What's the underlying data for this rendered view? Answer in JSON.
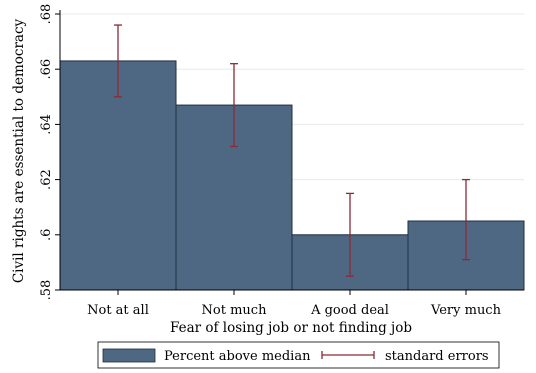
{
  "chart_data": {
    "type": "bar",
    "categories": [
      "Not at all",
      "Not much",
      "A good deal",
      "Very much"
    ],
    "series": [
      {
        "name": "Percent above median",
        "values": [
          0.663,
          0.647,
          0.6,
          0.605
        ],
        "error_low": [
          0.65,
          0.632,
          0.585,
          0.591
        ],
        "error_high": [
          0.676,
          0.662,
          0.615,
          0.62
        ]
      }
    ],
    "error_series_name": "standard errors",
    "xlabel": "Fear of losing job or not finding job",
    "ylabel": "Civil rights are essential to democracy",
    "ylim": [
      0.58,
      0.68
    ],
    "yticks": [
      0.58,
      0.6,
      0.62,
      0.64,
      0.66,
      0.68
    ],
    "ytick_labels": [
      ".58",
      ".6",
      ".62",
      ".64",
      ".66",
      ".68"
    ],
    "grid": true,
    "legend_position": "bottom",
    "colors": {
      "bar_fill": "#4e6883",
      "bar_stroke": "#1f2f40",
      "error_bar": "#8b2a35",
      "grid": "#e6e9ec",
      "axis": "#000000"
    }
  }
}
